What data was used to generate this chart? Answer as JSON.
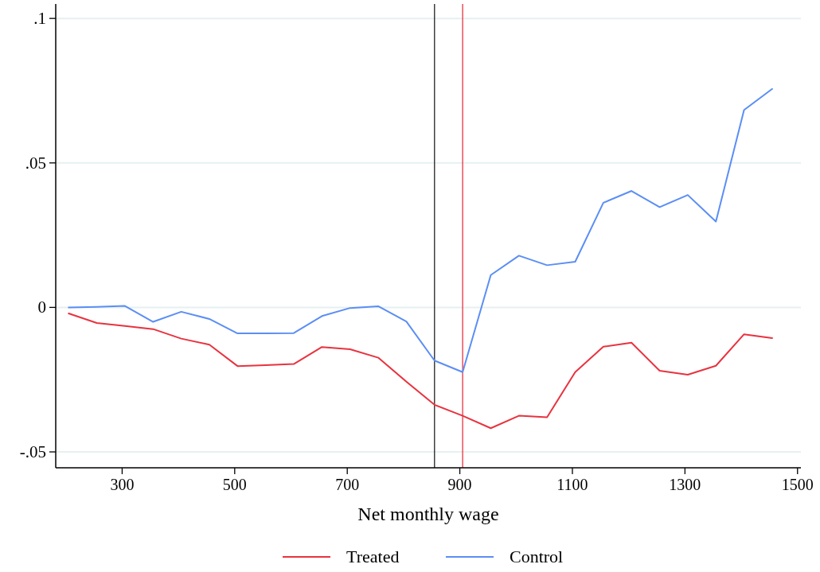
{
  "chart_data": {
    "type": "line",
    "xlabel": "Net monthly wage",
    "x": [
      205,
      255,
      305,
      355,
      405,
      455,
      505,
      555,
      605,
      655,
      705,
      755,
      805,
      855,
      905,
      955,
      1005,
      1055,
      1105,
      1155,
      1205,
      1255,
      1305,
      1355,
      1405,
      1455
    ],
    "series": [
      {
        "name": "Treated",
        "color": "#e8333f",
        "values": [
          -0.0021,
          -0.0054,
          -0.0064,
          -0.0075,
          -0.0108,
          -0.0129,
          -0.0203,
          -0.02,
          -0.0196,
          -0.0137,
          -0.0145,
          -0.0174,
          -0.0257,
          -0.0337,
          -0.0375,
          -0.0418,
          -0.0375,
          -0.038,
          -0.0224,
          -0.0136,
          -0.0122,
          -0.0219,
          -0.0233,
          -0.0202,
          -0.0093,
          -0.0106
        ]
      },
      {
        "name": "Control",
        "color": "#5b8ef5",
        "values": [
          0,
          0.0002,
          0.0005,
          -0.005,
          -0.0015,
          -0.004,
          -0.009,
          -0.009,
          -0.0089,
          -0.003,
          -0.0002,
          0.0004,
          -0.0049,
          -0.0184,
          -0.0224,
          0.0112,
          0.0179,
          0.0146,
          0.0158,
          0.0362,
          0.0403,
          0.0347,
          0.0389,
          0.0297,
          0.0683,
          0.0756
        ]
      }
    ],
    "xlim": [
      182,
      1506
    ],
    "xticks": [
      300,
      500,
      700,
      900,
      1100,
      1300,
      1500
    ],
    "ylim": [
      -0.0555,
      0.105
    ],
    "yticks": [
      {
        "value": -0.05,
        "label": "-.05"
      },
      0,
      {
        "value": 0.05,
        "label": ".05"
      },
      {
        "value": 0.1,
        "label": ".1"
      }
    ],
    "grid": "y",
    "legend": "bottom",
    "ref_lines": [
      {
        "axis": "x",
        "value": 855,
        "color": "#222222"
      },
      {
        "axis": "x",
        "value": 905,
        "color": "#e8333f"
      }
    ]
  }
}
